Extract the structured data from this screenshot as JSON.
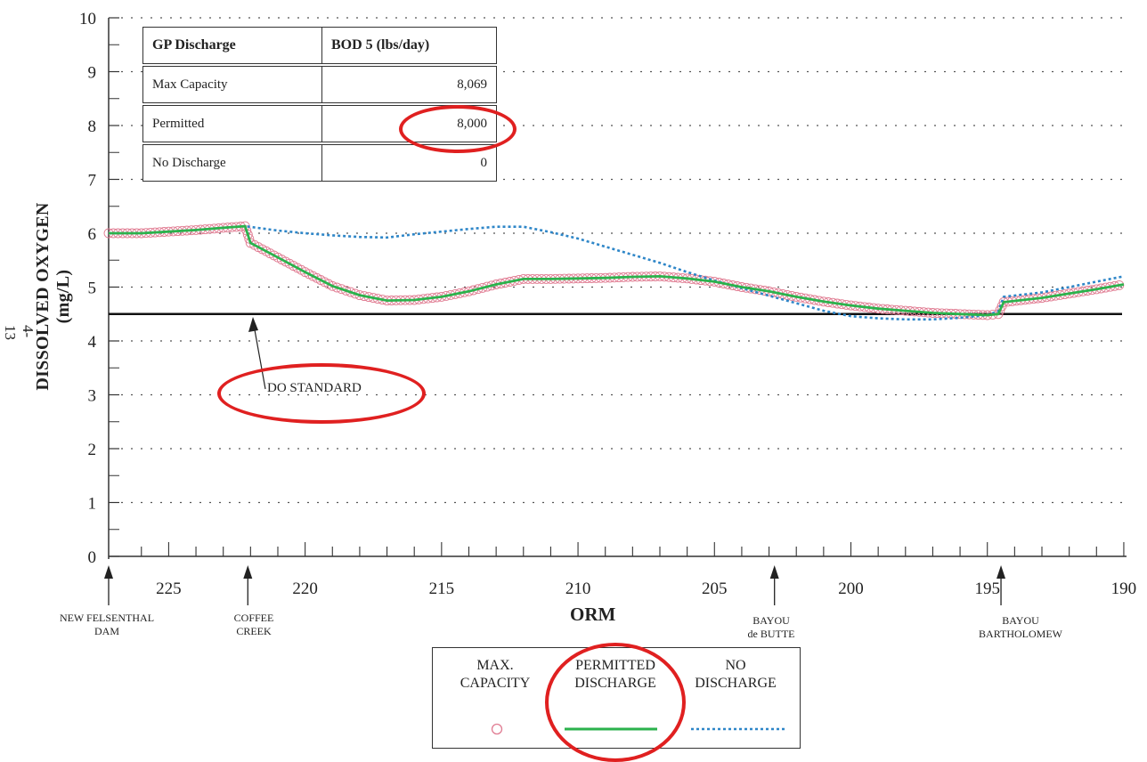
{
  "page_number": "4-13",
  "annotation": {
    "text": "DO STANDARD"
  },
  "table": {
    "header": [
      "GP Discharge",
      "BOD 5 (lbs/day)"
    ],
    "rows": [
      {
        "label": "Max Capacity",
        "value": "8,069"
      },
      {
        "label": "Permitted",
        "value": "8,000"
      },
      {
        "label": "No Discharge",
        "value": "0"
      }
    ]
  },
  "landmarks": [
    {
      "line1": "NEW FELSENTHAL",
      "line2": "DAM",
      "x": 227.2
    },
    {
      "line1": "COFFEE",
      "line2": "CREEK",
      "x": 222.1
    },
    {
      "line1": "BAYOU",
      "line2": "de BUTTE",
      "x": 202.8
    },
    {
      "line1": "BAYOU",
      "line2": "BARTHOLOMEW",
      "x": 194.5
    }
  ],
  "legend": {
    "items": [
      {
        "line1": "MAX.",
        "line2": "CAPACITY"
      },
      {
        "line1": "PERMITTED",
        "line2": "DISCHARGE"
      },
      {
        "line1": "NO",
        "line2": "DISCHARGE"
      }
    ]
  },
  "colors": {
    "max_capacity": "#e07c92",
    "permitted": "#2bb24c",
    "no_discharge": "#2e86c8",
    "highlight": "#e02020",
    "standard_line": "#111111",
    "grid": "#555555"
  },
  "chart_data": {
    "type": "line",
    "title": "",
    "xlabel": "ORM",
    "ylabel": "DISSOLVED OXYGEN (mg/L)",
    "xlim": [
      227.2,
      189.9
    ],
    "ylim": [
      0,
      10
    ],
    "xticks": [
      225,
      220,
      215,
      210,
      205,
      200,
      195,
      190
    ],
    "yticks": [
      0,
      1,
      2,
      3,
      4,
      5,
      6,
      7,
      8,
      9,
      10
    ],
    "grid": "dotted horizontal",
    "do_standard": 4.5,
    "series": [
      {
        "name": "MAX. CAPACITY",
        "style": "circle markers",
        "x": [
          227.2,
          226,
          225,
          224,
          223,
          222.2,
          222,
          221,
          220,
          219,
          218,
          217,
          216,
          215,
          214,
          213,
          212,
          211,
          210,
          209,
          208,
          207,
          206,
          205,
          204,
          203,
          202,
          201,
          200,
          199,
          198,
          197,
          196,
          195,
          194.6,
          194.4,
          193,
          192,
          191,
          190
        ],
        "y": [
          6.0,
          6.0,
          6.03,
          6.06,
          6.1,
          6.13,
          5.82,
          5.55,
          5.28,
          5.02,
          4.85,
          4.75,
          4.76,
          4.82,
          4.92,
          5.05,
          5.15,
          5.15,
          5.16,
          5.17,
          5.19,
          5.2,
          5.16,
          5.1,
          5.0,
          4.92,
          4.82,
          4.73,
          4.66,
          4.6,
          4.56,
          4.52,
          4.5,
          4.48,
          4.5,
          4.72,
          4.8,
          4.88,
          4.96,
          5.05
        ]
      },
      {
        "name": "PERMITTED DISCHARGE",
        "style": "solid line",
        "x": [
          227.2,
          226,
          225,
          224,
          223,
          222.2,
          222,
          221,
          220,
          219,
          218,
          217,
          216,
          215,
          214,
          213,
          212,
          211,
          210,
          209,
          208,
          207,
          206,
          205,
          204,
          203,
          202,
          201,
          200,
          199,
          198,
          197,
          196,
          195,
          194.6,
          194.4,
          193,
          192,
          191,
          190
        ],
        "y": [
          6.0,
          6.0,
          6.03,
          6.06,
          6.1,
          6.13,
          5.82,
          5.55,
          5.28,
          5.02,
          4.85,
          4.75,
          4.76,
          4.82,
          4.92,
          5.05,
          5.15,
          5.15,
          5.16,
          5.17,
          5.19,
          5.2,
          5.16,
          5.1,
          5.0,
          4.92,
          4.82,
          4.73,
          4.66,
          4.6,
          4.56,
          4.52,
          4.5,
          4.48,
          4.5,
          4.72,
          4.8,
          4.88,
          4.96,
          5.05
        ]
      },
      {
        "name": "NO DISCHARGE",
        "style": "dotted line",
        "x": [
          227.2,
          226,
          225,
          224,
          223,
          222.2,
          221,
          220,
          219,
          218,
          217,
          216,
          215,
          214,
          213,
          212,
          211,
          210,
          209,
          208,
          207,
          206,
          205,
          204,
          203,
          202,
          201,
          200,
          199,
          198,
          197,
          196,
          195,
          194.6,
          194.4,
          193,
          192,
          191,
          190
        ],
        "y": [
          6.0,
          6.0,
          6.03,
          6.06,
          6.1,
          6.13,
          6.05,
          6.0,
          5.96,
          5.93,
          5.92,
          5.98,
          6.03,
          6.08,
          6.12,
          6.12,
          6.02,
          5.9,
          5.75,
          5.6,
          5.45,
          5.28,
          5.12,
          4.98,
          4.84,
          4.7,
          4.56,
          4.46,
          4.42,
          4.4,
          4.4,
          4.43,
          4.48,
          4.55,
          4.82,
          4.9,
          5.0,
          5.1,
          5.2
        ]
      }
    ]
  }
}
